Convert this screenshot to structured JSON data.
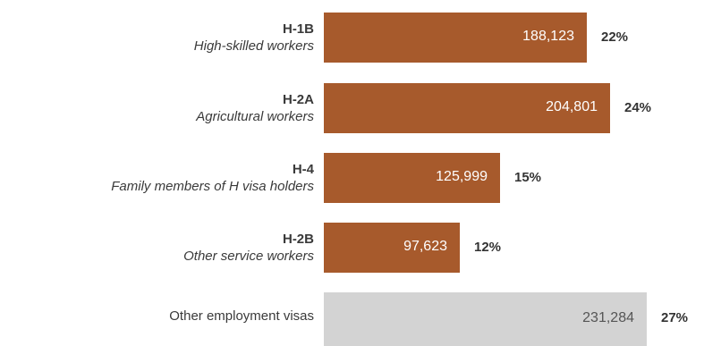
{
  "chart_data": {
    "type": "bar",
    "orientation": "horizontal",
    "categories": [
      {
        "code": "H-1B",
        "description": "High-skilled workers"
      },
      {
        "code": "H-2A",
        "description": "Agricultural workers"
      },
      {
        "code": "H-4",
        "description": "Family members of H visa holders"
      },
      {
        "code": "H-2B",
        "description": "Other service workers"
      },
      {
        "code": "",
        "description": "Other employment visas"
      }
    ],
    "values": [
      188123,
      204801,
      125999,
      97623,
      231284
    ],
    "value_labels": [
      "188,123",
      "204,801",
      "125,999",
      "97,623",
      "231,284"
    ],
    "percent_labels": [
      "22%",
      "24%",
      "15%",
      "12%",
      "27%"
    ],
    "colors": [
      "#a75a2c",
      "#a75a2c",
      "#a75a2c",
      "#a75a2c",
      "#d3d3d3"
    ],
    "xlim": [
      0,
      231284
    ],
    "grid": false
  }
}
